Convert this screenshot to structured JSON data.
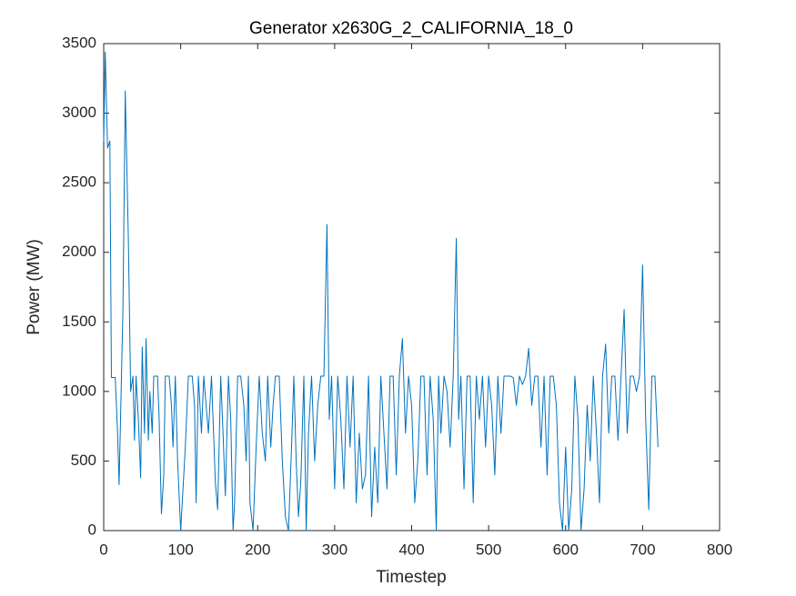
{
  "chart_data": {
    "type": "line",
    "title": "Generator x2630G_2_CALIFORNIA_18_0",
    "xlabel": "Timestep",
    "ylabel": "Power (MW)",
    "x": [
      0,
      2,
      5,
      8,
      10,
      15,
      18,
      20,
      25,
      28,
      32,
      35,
      38,
      40,
      42,
      45,
      48,
      50,
      53,
      55,
      58,
      60,
      63,
      65,
      70,
      72,
      75,
      78,
      80,
      85,
      88,
      90,
      93,
      96,
      100,
      103,
      106,
      110,
      115,
      118,
      120,
      123,
      127,
      130,
      133,
      136,
      140,
      145,
      148,
      152,
      155,
      158,
      162,
      165,
      168,
      170,
      174,
      178,
      182,
      185,
      188,
      190,
      194,
      198,
      202,
      206,
      210,
      213,
      217,
      220,
      223,
      228,
      232,
      236,
      240,
      244,
      247,
      250,
      253,
      256,
      260,
      263,
      266,
      270,
      274,
      278,
      282,
      286,
      290,
      293,
      296,
      300,
      304,
      308,
      312,
      316,
      320,
      324,
      328,
      332,
      336,
      340,
      344,
      348,
      352,
      356,
      360,
      364,
      368,
      372,
      376,
      380,
      384,
      388,
      392,
      396,
      400,
      404,
      408,
      412,
      416,
      420,
      424,
      428,
      432,
      435,
      438,
      442,
      446,
      450,
      454,
      458,
      461,
      464,
      468,
      472,
      476,
      480,
      484,
      488,
      492,
      496,
      500,
      504,
      508,
      512,
      516,
      520,
      524,
      528,
      532,
      536,
      540,
      544,
      548,
      552,
      556,
      560,
      564,
      568,
      572,
      576,
      580,
      584,
      588,
      592,
      596,
      600,
      604,
      608,
      612,
      616,
      620,
      624,
      628,
      632,
      636,
      640,
      644,
      648,
      652,
      656,
      660,
      664,
      668,
      672,
      676,
      680,
      684,
      688,
      692,
      696,
      700,
      704,
      708,
      712,
      716,
      720
    ],
    "values": [
      2800,
      3440,
      2750,
      2800,
      1100,
      1100,
      700,
      330,
      1600,
      3160,
      2100,
      1000,
      1110,
      650,
      1110,
      800,
      380,
      1320,
      700,
      1380,
      650,
      1000,
      700,
      1110,
      1110,
      800,
      120,
      400,
      1110,
      1110,
      900,
      600,
      1110,
      500,
      0,
      300,
      600,
      1110,
      1110,
      900,
      200,
      1110,
      700,
      1110,
      900,
      700,
      1110,
      350,
      150,
      1110,
      700,
      250,
      1110,
      800,
      0,
      200,
      1110,
      1110,
      900,
      500,
      1110,
      200,
      0,
      600,
      1110,
      700,
      500,
      1110,
      600,
      900,
      1110,
      1110,
      500,
      100,
      0,
      600,
      1110,
      500,
      100,
      350,
      1110,
      0,
      700,
      1110,
      500,
      900,
      1110,
      1110,
      2200,
      800,
      1110,
      300,
      1110,
      800,
      300,
      1110,
      600,
      1110,
      200,
      700,
      300,
      400,
      1110,
      100,
      600,
      200,
      1110,
      700,
      300,
      1110,
      1110,
      400,
      1110,
      1380,
      700,
      1110,
      900,
      200,
      500,
      1110,
      1110,
      400,
      1110,
      800,
      0,
      1110,
      700,
      1110,
      1000,
      600,
      1110,
      2100,
      800,
      1110,
      300,
      1110,
      1110,
      200,
      1110,
      800,
      1110,
      600,
      1110,
      900,
      400,
      1110,
      700,
      1110,
      1110,
      1110,
      1100,
      900,
      1110,
      1050,
      1110,
      1310,
      900,
      1110,
      1110,
      600,
      1110,
      400,
      1110,
      1110,
      900,
      200,
      0,
      600,
      0,
      300,
      1110,
      800,
      0,
      300,
      900,
      500,
      1110,
      700,
      200,
      1110,
      1340,
      700,
      1110,
      1110,
      650,
      1110,
      1590,
      700,
      1110,
      1110,
      1000,
      1110,
      1910,
      800,
      150,
      1110,
      1110,
      600
    ],
    "color": "#0072bd",
    "xlim": [
      0,
      800
    ],
    "xticks": [
      0,
      100,
      200,
      300,
      400,
      500,
      600,
      700,
      800
    ],
    "ylim": [
      0,
      3500
    ],
    "yticks": [
      0,
      500,
      1000,
      1500,
      2000,
      2500,
      3000,
      3500
    ],
    "grid": false
  }
}
